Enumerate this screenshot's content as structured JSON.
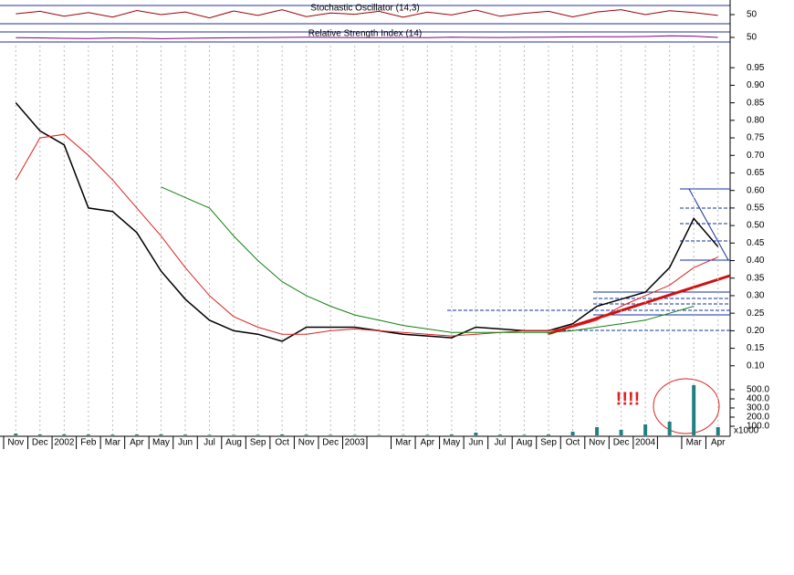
{
  "chart_data": [
    {
      "type": "line",
      "title": "Stochastic Oscillator (14,3)",
      "ylim": [
        0,
        100
      ],
      "yticks": [
        50
      ],
      "series": [
        {
          "color": "#a00000",
          "values": [
            55,
            70,
            40,
            62,
            35,
            75,
            50,
            66,
            30,
            72,
            45,
            80,
            38,
            60,
            52,
            70,
            34,
            65,
            48,
            78,
            40,
            58,
            70,
            36,
            66,
            80,
            50,
            74,
            62,
            45
          ]
        }
      ]
    },
    {
      "type": "line",
      "title": "Relative Strength Index (14)",
      "ylim": [
        0,
        100
      ],
      "yticks": [
        50
      ],
      "series": [
        {
          "color": "#800080",
          "values": [
            48,
            45,
            40,
            38,
            44,
            42,
            36,
            40,
            44,
            46,
            48,
            50,
            52,
            50,
            49,
            48,
            50,
            47,
            52,
            50,
            49,
            51,
            52,
            56,
            58,
            57,
            60,
            68,
            64,
            50
          ]
        }
      ]
    },
    {
      "type": "line",
      "annotation": "!!!!",
      "categories": [
        "Nov",
        "Dec",
        "2002",
        "Feb",
        "Mar",
        "Apr",
        "May",
        "Jun",
        "Jul",
        "Aug",
        "Sep",
        "Oct",
        "Nov",
        "Dec",
        "2003",
        null,
        "Mar",
        "Apr",
        "May",
        "Jun",
        "Jul",
        "Aug",
        "Sep",
        "Oct",
        "Nov",
        "Dec",
        "2004",
        null,
        "Mar",
        "Apr"
      ],
      "ylim": [
        0.05,
        1.0
      ],
      "yticks": [
        {
          "value": 0.1,
          "label": "0.10"
        },
        0.15,
        {
          "value": 0.2,
          "label": "0.20"
        },
        0.25,
        {
          "value": 0.3,
          "label": "0.30"
        },
        0.35,
        {
          "value": 0.4,
          "label": "0.40"
        },
        0.45,
        {
          "value": 0.5,
          "label": "0.50"
        },
        0.55,
        {
          "value": 0.6,
          "label": "0.60"
        },
        0.65,
        {
          "value": 0.7,
          "label": "0.70"
        },
        0.75,
        {
          "value": 0.8,
          "label": "0.80"
        },
        0.85,
        {
          "value": 0.9,
          "label": "0.90"
        },
        0.95
      ],
      "series": [
        {
          "color": "#000000",
          "values": [
            0.85,
            0.77,
            0.73,
            0.55,
            0.54,
            0.48,
            0.37,
            0.29,
            0.23,
            0.2,
            0.19,
            0.17,
            0.21,
            0.21,
            0.21,
            0.2,
            0.19,
            0.185,
            0.18,
            0.21,
            0.205,
            0.2,
            0.2,
            0.22,
            0.27,
            0.29,
            0.31,
            0.38,
            0.52,
            0.44
          ]
        },
        {
          "color": "#e02020",
          "values": [
            0.63,
            0.75,
            0.76,
            0.7,
            0.63,
            0.55,
            0.47,
            0.38,
            0.3,
            0.24,
            0.21,
            0.19,
            0.19,
            0.2,
            0.205,
            0.2,
            0.195,
            0.19,
            0.185,
            0.19,
            0.195,
            0.2,
            0.2,
            0.21,
            0.23,
            0.27,
            0.3,
            0.33,
            0.38,
            0.41
          ]
        },
        {
          "color": "#108010",
          "values": [
            null,
            null,
            null,
            null,
            null,
            null,
            0.61,
            0.58,
            0.55,
            0.47,
            0.4,
            0.34,
            0.3,
            0.27,
            0.245,
            0.23,
            0.215,
            0.205,
            0.195,
            0.195,
            0.195,
            0.195,
            0.195,
            0.2,
            0.21,
            0.22,
            0.23,
            0.25,
            0.27,
            null
          ]
        }
      ]
    },
    {
      "type": "bar",
      "ylim": [
        0,
        600
      ],
      "ylabel": "x1000",
      "yticks": [
        {
          "value": 100,
          "label": "100.0"
        },
        {
          "value": 200,
          "label": "200.0"
        },
        {
          "value": 300,
          "label": "300.0"
        },
        {
          "value": 400,
          "label": "400.0"
        },
        {
          "value": 500,
          "label": "500.0"
        }
      ],
      "color": "#208080",
      "values": [
        20,
        10,
        12,
        10,
        8,
        10,
        12,
        8,
        6,
        5,
        6,
        10,
        8,
        6,
        5,
        5,
        4,
        6,
        10,
        30,
        8,
        6,
        10,
        40,
        90,
        60,
        120,
        150,
        550,
        90
      ]
    }
  ]
}
